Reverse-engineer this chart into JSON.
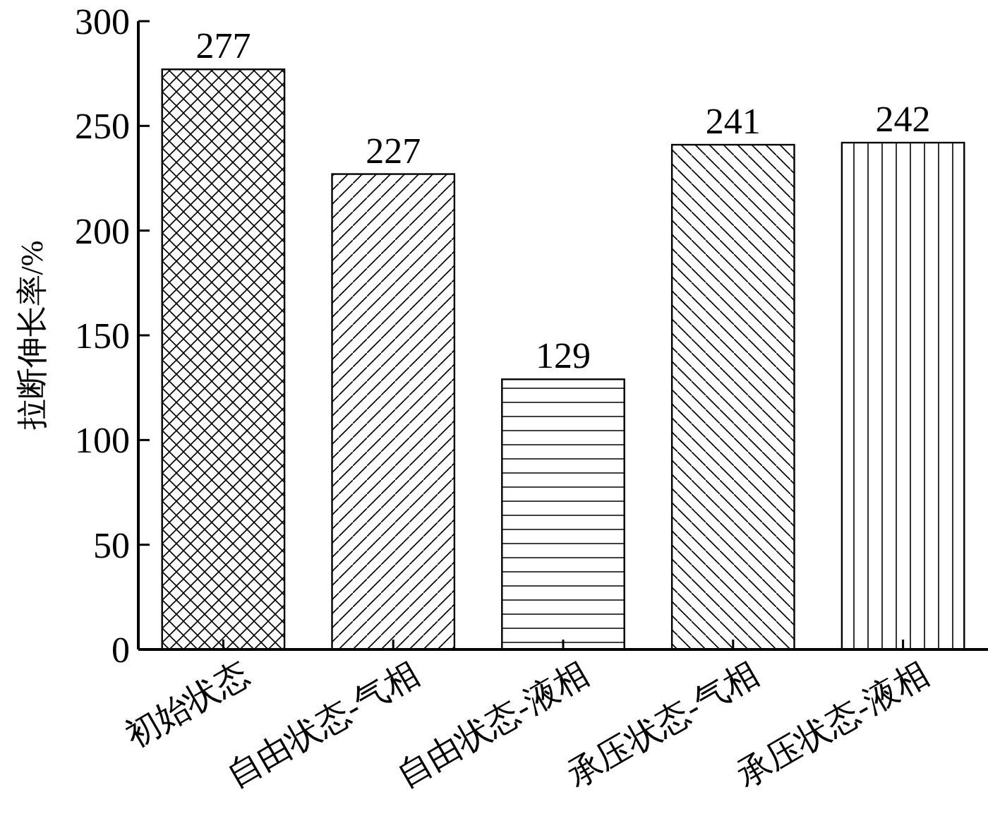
{
  "chart_data": {
    "type": "bar",
    "categories": [
      "初始状态",
      "自由状态-气相",
      "自由状态-液相",
      "承压状态-气相",
      "承压状态-液相"
    ],
    "values": [
      277,
      227,
      129,
      241,
      242
    ],
    "colors": [
      "#000000",
      "#000000",
      "#000000",
      "#000000",
      "#000000"
    ],
    "ylabel": "拉断伸长率/%",
    "ylim": [
      0,
      300
    ],
    "yticks": [
      0,
      50,
      100,
      150,
      200,
      250,
      300
    ],
    "data_labels": true,
    "grid": false
  }
}
